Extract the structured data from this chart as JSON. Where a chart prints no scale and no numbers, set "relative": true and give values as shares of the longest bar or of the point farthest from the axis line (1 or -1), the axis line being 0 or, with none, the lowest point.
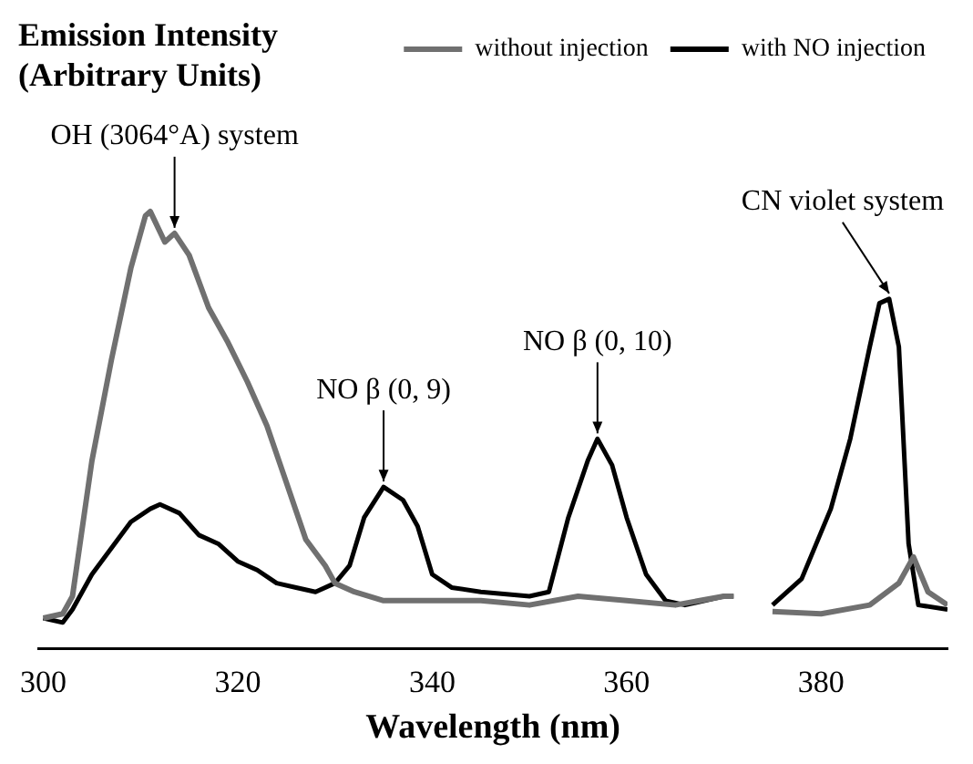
{
  "chart_data": {
    "type": "line",
    "relative": true,
    "ylabel": "Emission Intensity (Arbitrary Units)",
    "xlabel": "Wavelength (nm)",
    "xlim": [
      299.5,
      393
    ],
    "xticks": [
      300,
      320,
      340,
      360,
      380
    ],
    "grid": false,
    "legend": "top right",
    "marker": "none",
    "line_style": "solid",
    "series": [
      {
        "name": "without injection",
        "color": "#707070",
        "x": [
          300,
          302,
          303,
          305,
          307,
          309,
          310.5,
          311,
          312.5,
          313.5,
          315,
          317,
          319,
          321,
          323,
          325,
          327,
          329,
          330,
          332,
          335,
          340,
          345,
          350,
          355,
          360,
          365,
          370,
          371,
          373,
          375,
          380,
          385,
          388,
          389.5,
          391,
          393
        ],
        "values": [
          0.07,
          0.08,
          0.12,
          0.43,
          0.66,
          0.87,
          0.99,
          1,
          0.93,
          0.95,
          0.9,
          0.78,
          0.7,
          0.61,
          0.51,
          0.38,
          0.25,
          0.19,
          0.15,
          0.13,
          0.11,
          0.11,
          0.11,
          0.1,
          0.12,
          0.11,
          0.1,
          0.12,
          0.12,
          null,
          0.085,
          0.08,
          0.1,
          0.15,
          0.21,
          0.13,
          0.1
        ]
      },
      {
        "name": "with NO injection",
        "color": "#000000",
        "x": [
          300,
          302,
          303,
          305,
          307,
          309,
          311,
          312,
          314,
          316,
          318,
          320,
          322,
          324,
          326,
          328,
          330,
          331.5,
          333,
          335,
          337,
          338.5,
          340,
          342,
          345,
          350,
          352,
          354,
          356,
          357,
          358.5,
          360,
          362,
          364,
          366,
          370,
          371,
          373,
          375,
          378,
          381,
          383,
          385,
          386,
          387,
          388,
          389,
          390,
          393
        ],
        "values": [
          0.07,
          0.06,
          0.09,
          0.17,
          0.23,
          0.29,
          0.32,
          0.33,
          0.31,
          0.26,
          0.24,
          0.2,
          0.18,
          0.15,
          0.14,
          0.13,
          0.15,
          0.19,
          0.3,
          0.37,
          0.34,
          0.28,
          0.17,
          0.14,
          0.13,
          0.12,
          0.13,
          0.3,
          0.43,
          0.48,
          0.42,
          0.3,
          0.17,
          0.11,
          0.1,
          0.12,
          0.12,
          null,
          0.1,
          0.16,
          0.32,
          0.48,
          0.69,
          0.79,
          0.8,
          0.69,
          0.24,
          0.1,
          0.09
        ]
      }
    ],
    "annotations": [
      {
        "text": "OH (3064°A) system",
        "x": 313.5,
        "y": 0.95
      },
      {
        "text": "NO β (0, 9)",
        "x": 335,
        "y": 0.37
      },
      {
        "text": "NO β (0, 10)",
        "x": 357,
        "y": 0.48
      },
      {
        "text": "CN violet system",
        "x": 387,
        "y": 0.8
      }
    ]
  }
}
